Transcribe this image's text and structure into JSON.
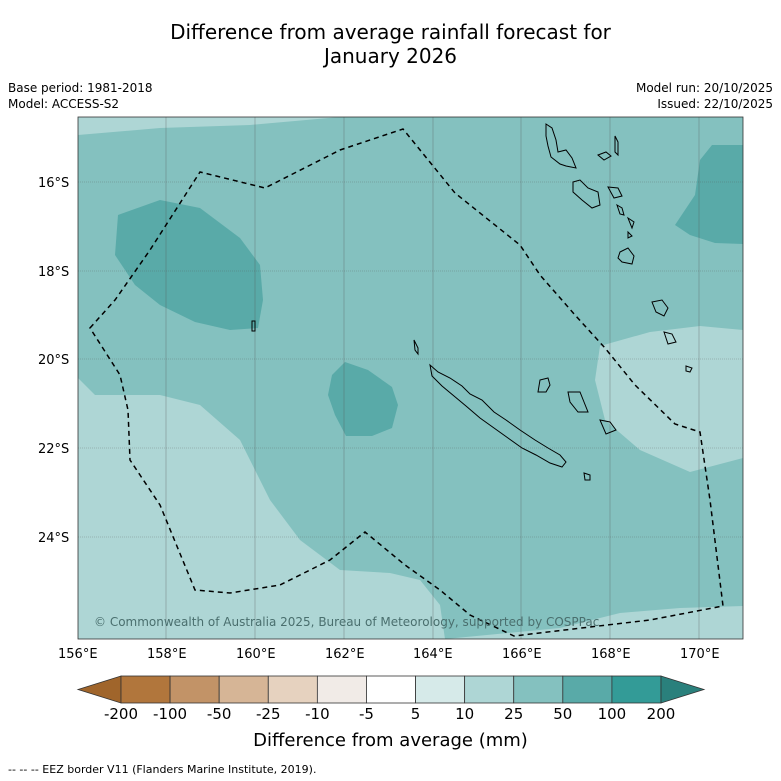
{
  "title": {
    "line1": "Difference from average rainfall forecast for",
    "line2": "January 2026"
  },
  "meta": {
    "base_period": "Base period: 1981-2018",
    "model": "Model: ACCESS-S2",
    "model_run": "Model run: 20/10/2025",
    "issued": "Issued: 22/10/2025"
  },
  "map": {
    "lat_labels": [
      "16°S",
      "18°S",
      "20°S",
      "22°S",
      "24°S"
    ],
    "lon_labels": [
      "156°E",
      "158°E",
      "160°E",
      "162°E",
      "164°E",
      "166°E",
      "168°E",
      "170°E"
    ],
    "copyright": "© Commonwealth of Australia 2025, Bureau of Meteorology, supported by COSPPac"
  },
  "colorbar": {
    "title": "Difference from average (mm)",
    "tick_labels": [
      "-200",
      "-100",
      "-50",
      "-25",
      "-10",
      "-5",
      "5",
      "10",
      "25",
      "50",
      "100",
      "200"
    ],
    "colors": [
      "#a0652b",
      "#b1763c",
      "#c29367",
      "#d6b596",
      "#e6d2bf",
      "#f1ebe7",
      "#ffffff",
      "#d6eae9",
      "#aed6d5",
      "#84c1bf",
      "#59aaa8",
      "#339b97",
      "#2a807c"
    ]
  },
  "footer": {
    "text": "--  --  -- EEZ border V11 (Flanders Marine Institute, 2019)."
  },
  "legend_colors": {
    "pale": "#aed6d5",
    "mid": "#84c1bf",
    "dark": "#59aaa8"
  }
}
